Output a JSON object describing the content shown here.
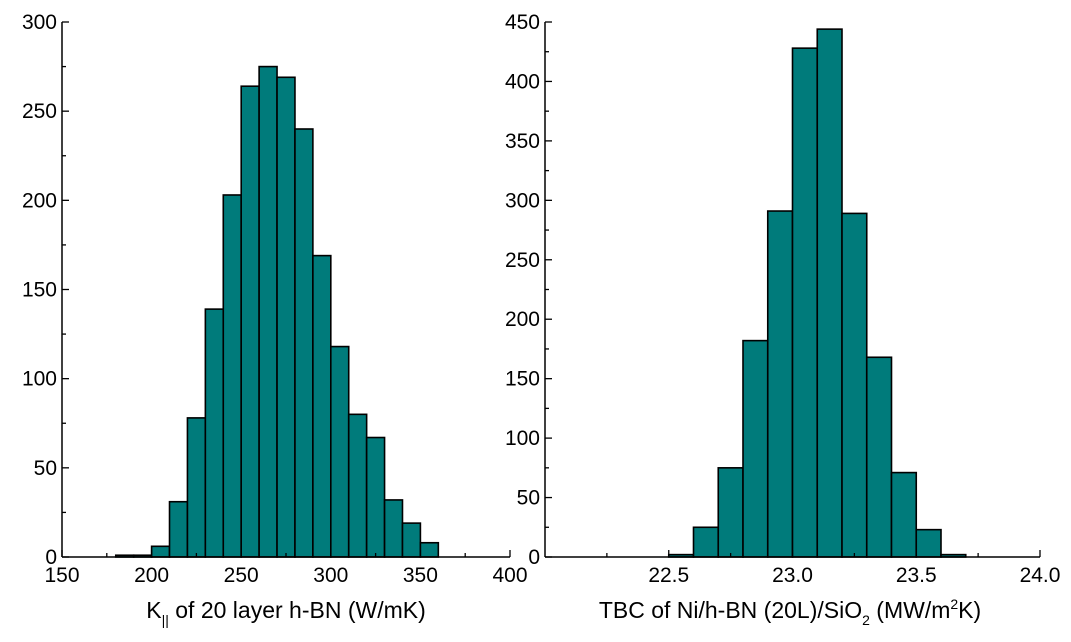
{
  "chart_data": [
    {
      "type": "bar",
      "title": "",
      "xlabel": {
        "pre": "K",
        "sub": "||",
        "post": " of 20 layer h-BN (W/mK)"
      },
      "ylabel": "",
      "xlim": [
        150,
        400
      ],
      "ylim": [
        0,
        300
      ],
      "x_ticks": [
        "150",
        "200",
        "250",
        "300",
        "350",
        "400"
      ],
      "y_ticks": [
        "0",
        "50",
        "100",
        "150",
        "200",
        "250",
        "300"
      ],
      "bin_width": 10,
      "bin_starts": [
        180,
        190,
        200,
        210,
        220,
        230,
        240,
        250,
        260,
        270,
        280,
        290,
        300,
        310,
        320,
        330,
        340,
        350
      ],
      "values": [
        1,
        1,
        6,
        31,
        78,
        139,
        203,
        264,
        275,
        269,
        240,
        169,
        118,
        80,
        67,
        32,
        19,
        8
      ],
      "bar_color": "#007b7b",
      "grid": false
    },
    {
      "type": "bar",
      "title": "",
      "xlabel": {
        "pre": "TBC of Ni/h-BN (20L)/SiO",
        "sub": "2",
        "mid": " (MW/m",
        "sup": "2",
        "post": "K)"
      },
      "ylabel": "",
      "xlim": [
        22.0,
        24.0
      ],
      "ylim": [
        0,
        450
      ],
      "x_ticks": [
        "22.5",
        "23.0",
        "23.5",
        "24.0"
      ],
      "y_ticks": [
        "0",
        "50",
        "100",
        "150",
        "200",
        "250",
        "300",
        "350",
        "400",
        "450"
      ],
      "bin_width": 0.1,
      "bin_starts": [
        22.5,
        22.6,
        22.7,
        22.8,
        22.9,
        23.0,
        23.1,
        23.2,
        23.3,
        23.4,
        23.5,
        23.6
      ],
      "values": [
        2,
        25,
        75,
        182,
        291,
        428,
        444,
        289,
        168,
        71,
        23,
        2
      ],
      "bar_color": "#007b7b",
      "grid": false
    }
  ]
}
